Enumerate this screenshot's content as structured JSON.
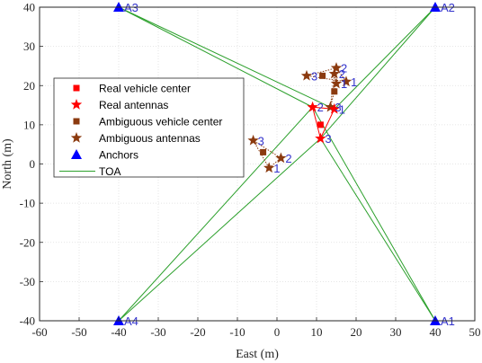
{
  "chart_data": {
    "type": "scatter",
    "xlabel": "East (m)",
    "ylabel": "North (m)",
    "xlim": [
      -60,
      50
    ],
    "ylim": [
      -40,
      40
    ],
    "xticks": [
      -60,
      -50,
      -40,
      -30,
      -20,
      -10,
      0,
      10,
      20,
      30,
      40,
      50
    ],
    "yticks": [
      -40,
      -30,
      -20,
      -10,
      0,
      10,
      20,
      30,
      40
    ],
    "grid": true,
    "legend_position": "upper-left",
    "legend": [
      {
        "label": "Real vehicle center",
        "marker": "square",
        "color": "#ff0000"
      },
      {
        "label": "Real antennas",
        "marker": "star",
        "color": "#ff0000"
      },
      {
        "label": "Ambiguous vehicle center",
        "marker": "square",
        "color": "#8b3a0f"
      },
      {
        "label": "Ambiguous antennas",
        "marker": "star",
        "color": "#8b3a0f"
      },
      {
        "label": "Anchors",
        "marker": "triangle",
        "color": "#0000ff"
      },
      {
        "label": "TOA",
        "marker": "line",
        "color": "#2ca02c"
      }
    ],
    "anchors": [
      {
        "label": "A1",
        "x": 40,
        "y": -40
      },
      {
        "label": "A2",
        "x": 40,
        "y": 40
      },
      {
        "label": "A3",
        "x": -40,
        "y": 40
      },
      {
        "label": "A4",
        "x": -40,
        "y": -40
      }
    ],
    "real_vehicle_center": {
      "x": 11,
      "y": 10
    },
    "real_antennas": [
      {
        "label": "1",
        "x": 14.5,
        "y": 14
      },
      {
        "label": "2",
        "x": 9,
        "y": 14.5
      },
      {
        "label": "3",
        "x": 11,
        "y": 6.5
      }
    ],
    "ambiguous_vehicles": [
      {
        "center": {
          "x": 11.5,
          "y": 22.5
        },
        "antennas": [
          {
            "label": "1",
            "x": 17.5,
            "y": 21
          },
          {
            "label": "2",
            "x": 15,
            "y": 24.5
          },
          {
            "label": "3",
            "x": 7.5,
            "y": 22.5
          }
        ]
      },
      {
        "center": {
          "x": 14.5,
          "y": 18.5
        },
        "antennas": [
          {
            "label": "1",
            "x": 15,
            "y": 20.5
          },
          {
            "label": "2",
            "x": 14.5,
            "y": 23
          },
          {
            "label": "3",
            "x": 13.5,
            "y": 14.5
          }
        ]
      },
      {
        "center": {
          "x": -3.5,
          "y": 3
        },
        "antennas": [
          {
            "label": "1",
            "x": -2,
            "y": -1
          },
          {
            "label": "2",
            "x": 1,
            "y": 1.5
          },
          {
            "label": "3",
            "x": -6,
            "y": 6
          }
        ]
      }
    ],
    "toa_lines": [
      {
        "from": "A1",
        "to": "2",
        "x1": 40,
        "y1": -40,
        "x2": 9,
        "y2": 14.5
      },
      {
        "from": "A1",
        "to": "3",
        "x1": 40,
        "y1": -40,
        "x2": 11,
        "y2": 6.5
      },
      {
        "from": "A2",
        "to": "1",
        "x1": 40,
        "y1": 40,
        "x2": 14.5,
        "y2": 14
      },
      {
        "from": "A2",
        "to": "3",
        "x1": 40,
        "y1": 40,
        "x2": 11,
        "y2": 6.5
      },
      {
        "from": "A3",
        "to": "2",
        "x1": -40,
        "y1": 40,
        "x2": 9,
        "y2": 14.5
      },
      {
        "from": "A3",
        "to": "1",
        "x1": -40,
        "y1": 40,
        "x2": 14.5,
        "y2": 14
      },
      {
        "from": "A4",
        "to": "2",
        "x1": -40,
        "y1": -40,
        "x2": 9,
        "y2": 14.5
      },
      {
        "from": "A4",
        "to": "3",
        "x1": -40,
        "y1": -40,
        "x2": 11,
        "y2": 6.5
      }
    ],
    "colors": {
      "real": "#ff0000",
      "ambiguous": "#8b3a0f",
      "anchor": "#0000ff",
      "toa": "#2ca02c",
      "label": "#3333cc"
    }
  }
}
